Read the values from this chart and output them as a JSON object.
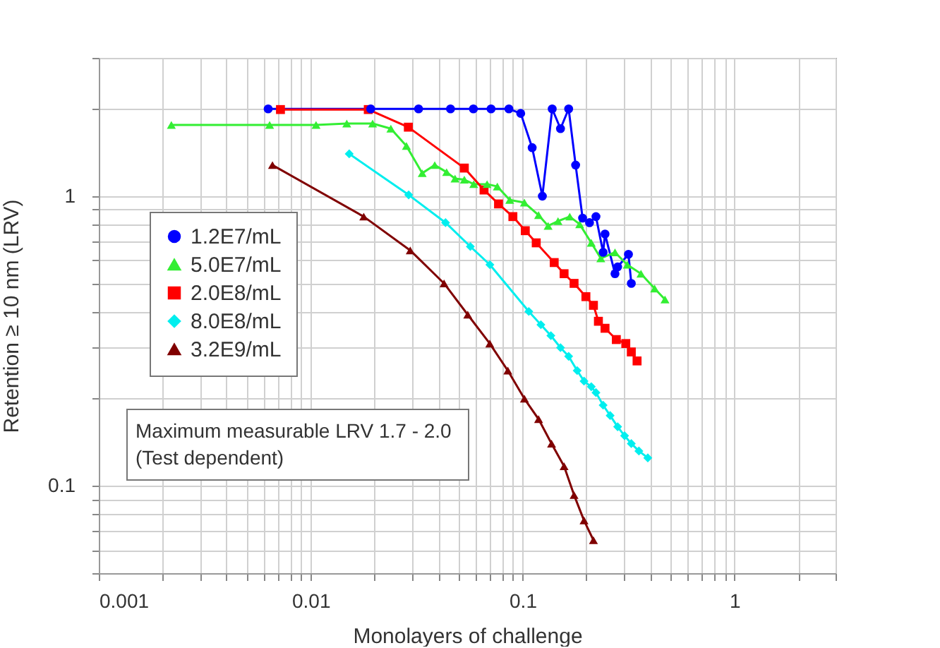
{
  "chart_data": {
    "type": "line",
    "xlabel": "Monolayers of challenge",
    "ylabel": "Retention ≥ 10 nm (LRV)",
    "log": "xy",
    "xlim": [
      0.001,
      3
    ],
    "ylim": [
      0.05,
      3
    ],
    "xticks": [
      0.001,
      {
        "value": 0.002,
        "label": null
      },
      {
        "value": 0.003,
        "label": null
      },
      {
        "value": 0.004,
        "label": null
      },
      {
        "value": 0.005,
        "label": null
      },
      {
        "value": 0.006,
        "label": null
      },
      {
        "value": 0.007,
        "label": null
      },
      {
        "value": 0.008,
        "label": null
      },
      {
        "value": 0.009,
        "label": null
      },
      0.01,
      {
        "value": 0.02,
        "label": null
      },
      {
        "value": 0.03,
        "label": null
      },
      {
        "value": 0.04,
        "label": null
      },
      {
        "value": 0.05,
        "label": null
      },
      {
        "value": 0.06,
        "label": null
      },
      {
        "value": 0.07,
        "label": null
      },
      {
        "value": 0.08,
        "label": null
      },
      {
        "value": 0.09,
        "label": null
      },
      0.1,
      {
        "value": 0.2,
        "label": null
      },
      {
        "value": 0.3,
        "label": null
      },
      {
        "value": 0.4,
        "label": null
      },
      {
        "value": 0.5,
        "label": null
      },
      {
        "value": 0.6,
        "label": null
      },
      {
        "value": 0.7,
        "label": null
      },
      {
        "value": 0.8,
        "label": null
      },
      {
        "value": 0.9,
        "label": null
      },
      1,
      {
        "value": 2,
        "label": null
      },
      {
        "value": 3,
        "label": null
      }
    ],
    "yticks": [
      {
        "value": 0.05,
        "label": null
      },
      {
        "value": 0.06,
        "label": null
      },
      {
        "value": 0.07,
        "label": null
      },
      {
        "value": 0.08,
        "label": null
      },
      {
        "value": 0.09,
        "label": null
      },
      0.1,
      {
        "value": 0.2,
        "label": null
      },
      {
        "value": 0.3,
        "label": null
      },
      {
        "value": 0.4,
        "label": null
      },
      {
        "value": 0.5,
        "label": null
      },
      {
        "value": 0.6,
        "label": null
      },
      {
        "value": 0.7,
        "label": null
      },
      {
        "value": 0.8,
        "label": null
      },
      {
        "value": 0.9,
        "label": null
      },
      1,
      {
        "value": 2,
        "label": null
      },
      {
        "value": 3,
        "label": null
      }
    ],
    "grid": true,
    "legend": "left",
    "line_style": "solid",
    "annotations": [
      "Maximum measurable LRV 1.7 - 2.0",
      "(Test dependent)"
    ],
    "series": [
      {
        "name": "1.2E7/mL",
        "color": "#0000ff",
        "marker": "circle",
        "x": [
          0.0063,
          0.0192,
          0.0323,
          0.0457,
          0.0586,
          0.071,
          0.0862,
          0.098,
          0.111,
          0.124,
          0.138,
          0.151,
          0.165,
          0.178,
          0.192,
          0.207,
          0.222,
          0.24,
          0.245,
          0.273,
          0.281,
          0.316,
          0.326
        ],
        "values": [
          2.0,
          2.0,
          2.0,
          2.0,
          2.0,
          2.0,
          2.0,
          1.93,
          1.47,
          1.0,
          2.0,
          1.71,
          2.0,
          1.28,
          0.84,
          0.81,
          0.85,
          0.64,
          0.74,
          0.54,
          0.57,
          0.63,
          0.5
        ]
      },
      {
        "name": "5.0E7/mL",
        "color": "#33ee33",
        "marker": "triangle",
        "x": [
          0.0022,
          0.0064,
          0.0106,
          0.0148,
          0.0196,
          0.0239,
          0.0283,
          0.0336,
          0.0385,
          0.0438,
          0.048,
          0.0531,
          0.0588,
          0.068,
          0.076,
          0.087,
          0.102,
          0.119,
          0.132,
          0.147,
          0.167,
          0.186,
          0.211,
          0.234,
          0.273,
          0.312,
          0.362,
          0.42,
          0.47
        ],
        "values": [
          1.76,
          1.76,
          1.76,
          1.78,
          1.78,
          1.71,
          1.49,
          1.2,
          1.28,
          1.21,
          1.15,
          1.14,
          1.1,
          1.1,
          1.08,
          0.97,
          0.95,
          0.86,
          0.79,
          0.82,
          0.85,
          0.8,
          0.69,
          0.61,
          0.64,
          0.58,
          0.54,
          0.48,
          0.44
        ]
      },
      {
        "name": "2.0E8/mL",
        "color": "#ff0000",
        "marker": "square",
        "x": [
          0.0072,
          0.0187,
          0.0289,
          0.0531,
          0.0658,
          0.077,
          0.09,
          0.103,
          0.116,
          0.141,
          0.157,
          0.175,
          0.199,
          0.216,
          0.228,
          0.245,
          0.277,
          0.307,
          0.326,
          0.347
        ],
        "values": [
          1.99,
          1.99,
          1.73,
          1.25,
          1.05,
          0.94,
          0.85,
          0.76,
          0.69,
          0.59,
          0.54,
          0.5,
          0.45,
          0.42,
          0.37,
          0.35,
          0.32,
          0.31,
          0.29,
          0.27
        ]
      },
      {
        "name": "8.0E8/mL",
        "color": "#00eeee",
        "marker": "diamond",
        "x": [
          0.0152,
          0.029,
          0.0433,
          0.0567,
          0.0701,
          0.107,
          0.122,
          0.136,
          0.151,
          0.165,
          0.181,
          0.195,
          0.211,
          0.222,
          0.24,
          0.259,
          0.281,
          0.303,
          0.326,
          0.354,
          0.39
        ],
        "values": [
          1.4,
          1.01,
          0.81,
          0.67,
          0.58,
          0.4,
          0.36,
          0.33,
          0.3,
          0.28,
          0.25,
          0.23,
          0.22,
          0.21,
          0.19,
          0.175,
          0.16,
          0.149,
          0.14,
          0.132,
          0.125
        ]
      },
      {
        "name": "3.2E9/mL",
        "color": "#800000",
        "marker": "triangle",
        "x": [
          0.0066,
          0.0178,
          0.0295,
          0.0426,
          0.0551,
          0.07,
          0.0852,
          0.102,
          0.119,
          0.137,
          0.157,
          0.175,
          0.195,
          0.216
        ],
        "values": [
          1.28,
          0.85,
          0.65,
          0.5,
          0.39,
          0.31,
          0.25,
          0.2,
          0.17,
          0.14,
          0.117,
          0.093,
          0.076,
          0.065
        ]
      }
    ]
  }
}
